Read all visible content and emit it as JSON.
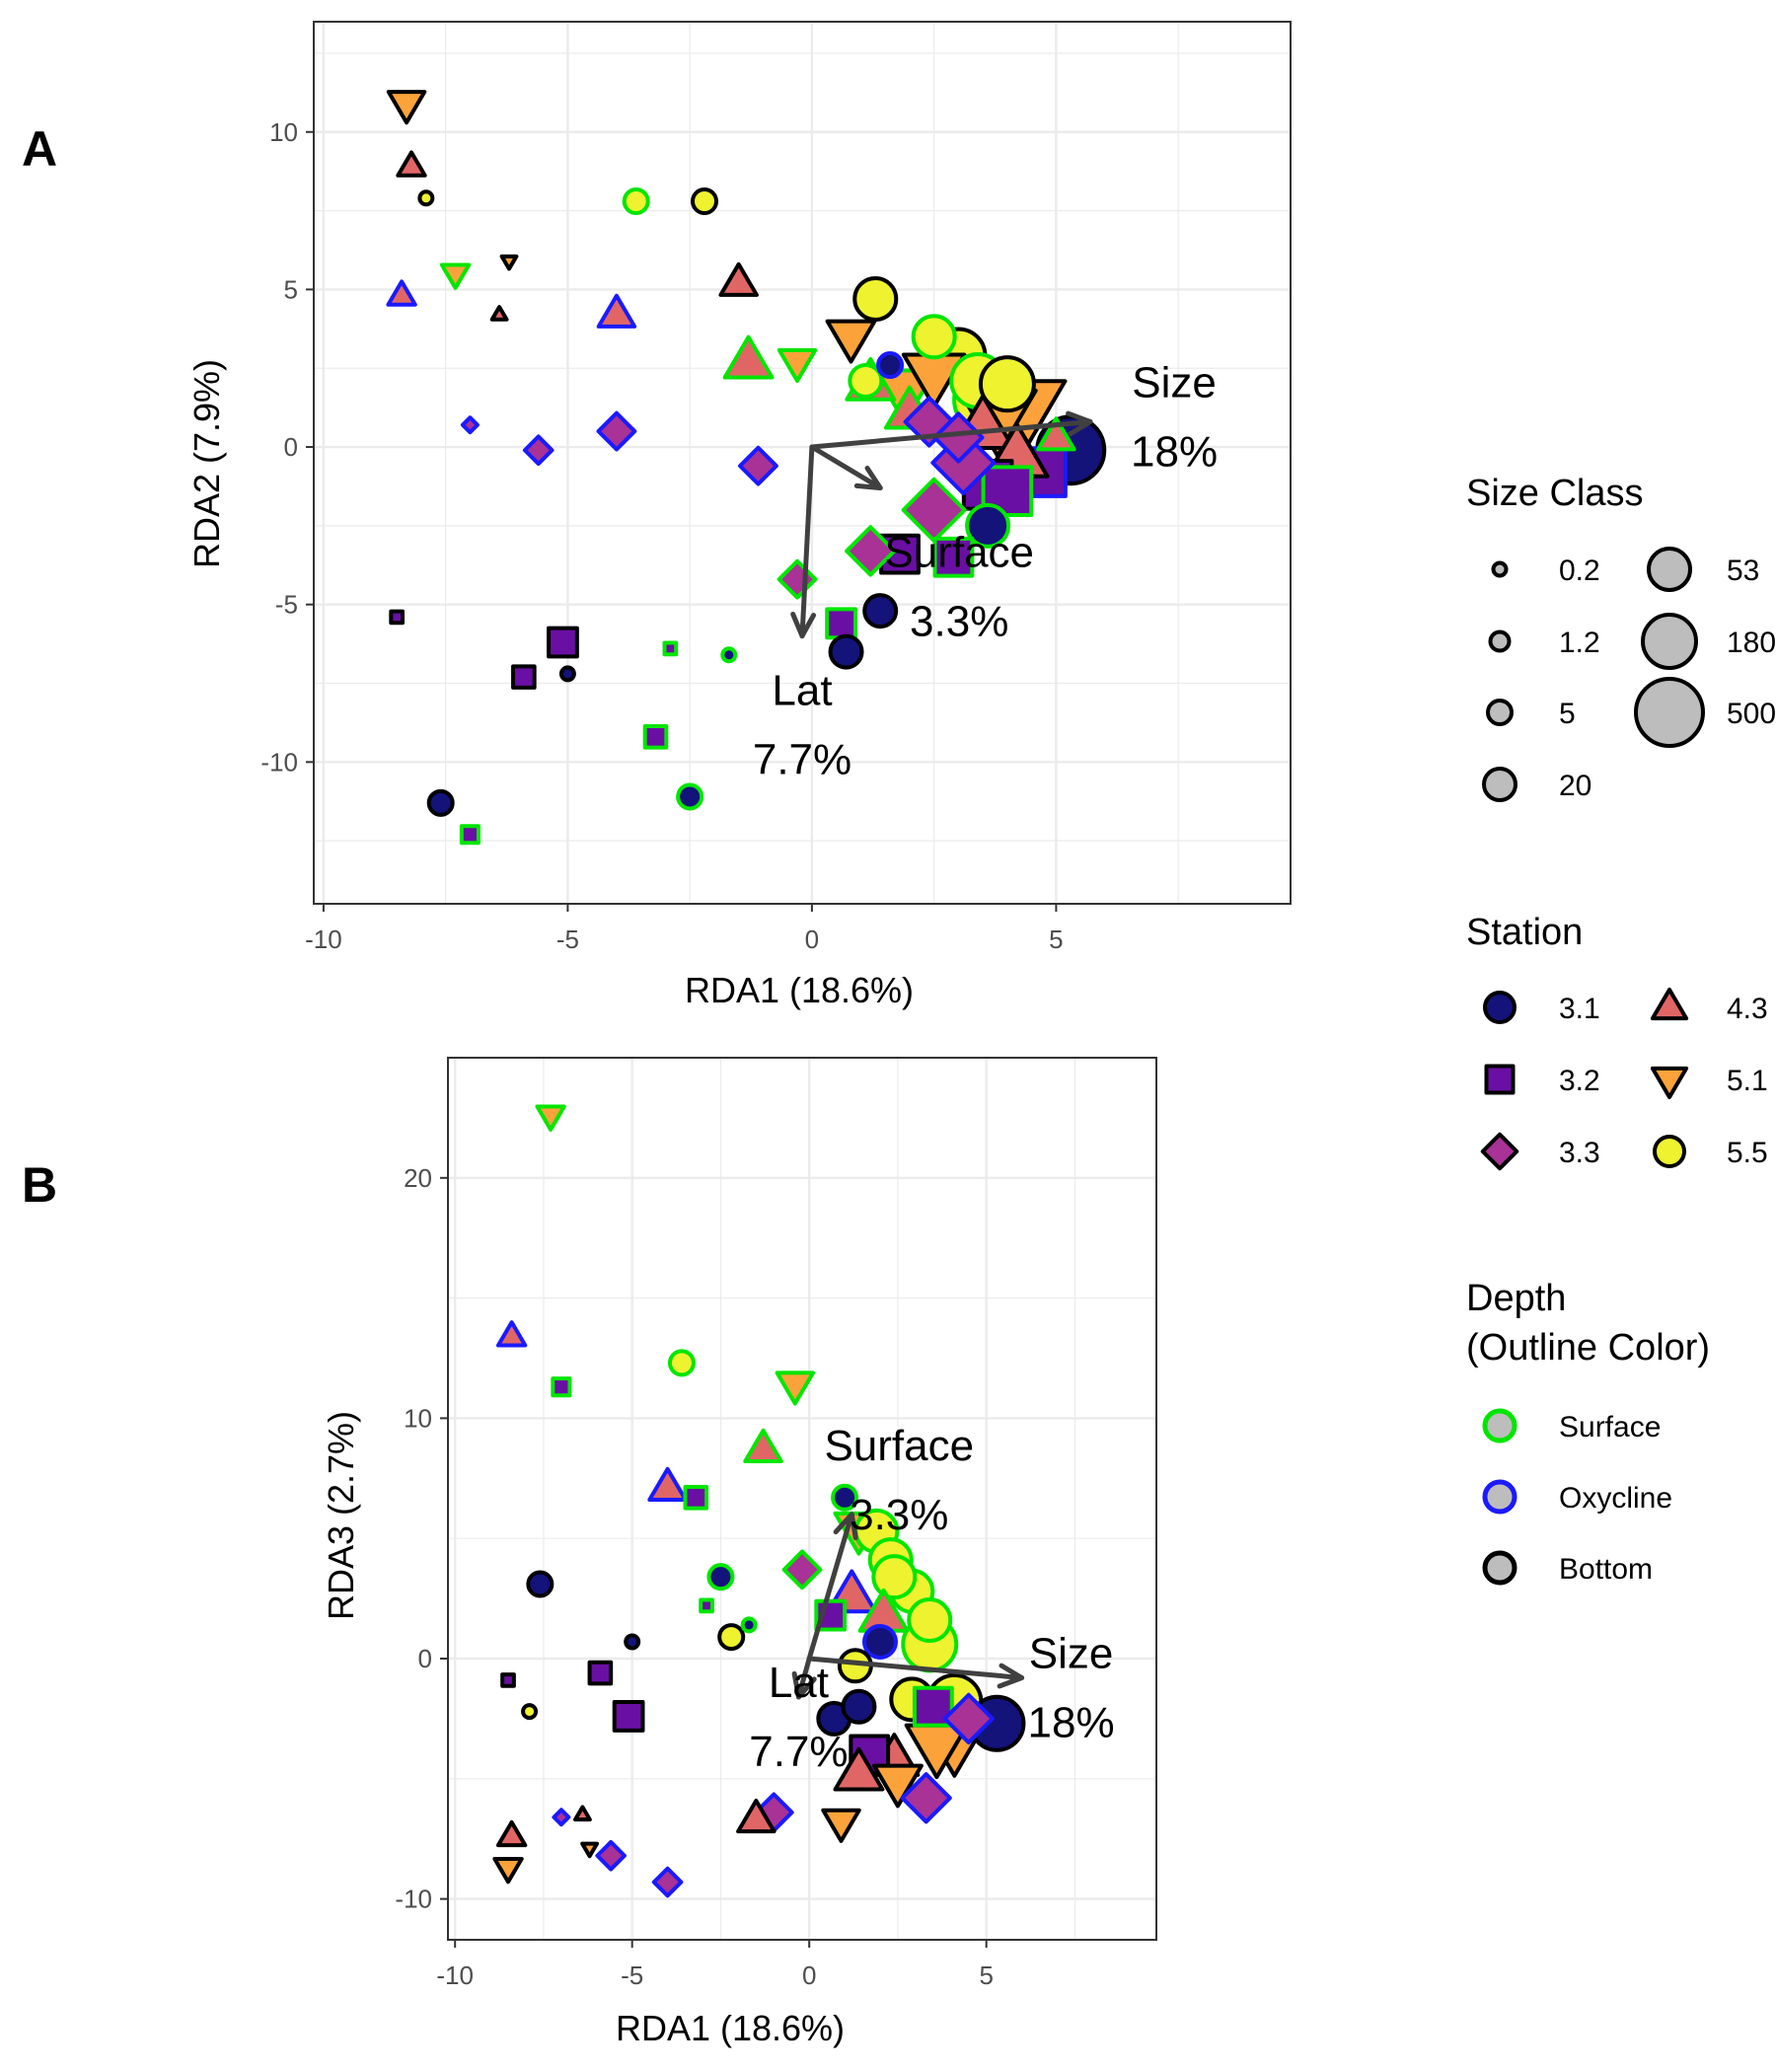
{
  "panels": [
    {
      "tag": "A",
      "xlabel": "RDA1 (18.6%)",
      "ylabel": "RDA2 (7.9%)",
      "xticks": [
        "-10",
        "-5",
        "0",
        "5"
      ],
      "yticks": [
        "-10",
        "-5",
        "0",
        "5",
        "10"
      ]
    },
    {
      "tag": "B",
      "xlabel": "RDA1 (18.6%)",
      "ylabel": "RDA3 (2.7%)",
      "xticks": [
        "-10",
        "-5",
        "0",
        "5"
      ],
      "yticks": [
        "-10",
        "0",
        "10",
        "20"
      ]
    }
  ],
  "legends": {
    "size_class": {
      "title": "Size Class",
      "items": [
        "0.2",
        "1.2",
        "5",
        "20",
        "53",
        "180",
        "500"
      ]
    },
    "station": {
      "title": "Station",
      "items": [
        "3.1",
        "3.2",
        "3.3",
        "4.3",
        "5.1",
        "5.5"
      ]
    },
    "depth": {
      "title": "Depth",
      "subtitle": "(Outline Color)",
      "items": [
        "Surface",
        "Oxycline",
        "Bottom"
      ]
    }
  },
  "colors": {
    "station": {
      "3.1": "#13137a",
      "3.2": "#6a0fa3",
      "3.3": "#a83296",
      "4.3": "#e06666",
      "5.1": "#fba33a",
      "5.5": "#eef22f"
    },
    "depth": {
      "Surface": "#00e600",
      "Oxycline": "#1a1aff",
      "Bottom": "#000000"
    },
    "arrow": "#404040",
    "grid": "#ebebeb"
  },
  "chart_data": [
    {
      "type": "scatter",
      "title": "",
      "xlabel": "RDA1 (18.6%)",
      "ylabel": "RDA2 (7.9%)",
      "xlim": [
        -10.2,
        9.8
      ],
      "ylim": [
        -14.5,
        13.5
      ],
      "grid": true,
      "legend_position": "right",
      "vectors": [
        {
          "label": "Size",
          "pct": "18%",
          "x": 5.7,
          "y": 0.8
        },
        {
          "label": "Surface",
          "pct": "3.3%",
          "x": 1.4,
          "y": -1.3
        },
        {
          "label": "Lat",
          "pct": "7.7%",
          "x": -0.2,
          "y": -6.0
        }
      ],
      "points": [
        {
          "x": -8.3,
          "y": 10.9,
          "station": "5.1",
          "depth": "Bottom",
          "size": "20"
        },
        {
          "x": -8.2,
          "y": 8.9,
          "station": "4.3",
          "depth": "Bottom",
          "size": "5"
        },
        {
          "x": -7.9,
          "y": 7.9,
          "station": "5.5",
          "depth": "Bottom",
          "size": "0.2"
        },
        {
          "x": -3.6,
          "y": 7.8,
          "station": "5.5",
          "depth": "Surface",
          "size": "5"
        },
        {
          "x": -2.2,
          "y": 7.8,
          "station": "5.5",
          "depth": "Bottom",
          "size": "5"
        },
        {
          "x": -8.4,
          "y": 4.8,
          "station": "4.3",
          "depth": "Oxycline",
          "size": "5"
        },
        {
          "x": -7.3,
          "y": 5.5,
          "station": "5.1",
          "depth": "Surface",
          "size": "5"
        },
        {
          "x": -6.2,
          "y": 5.9,
          "station": "5.1",
          "depth": "Bottom",
          "size": "0.2"
        },
        {
          "x": -6.4,
          "y": 4.2,
          "station": "4.3",
          "depth": "Bottom",
          "size": "0.2"
        },
        {
          "x": -4.0,
          "y": 4.2,
          "station": "4.3",
          "depth": "Oxycline",
          "size": "20"
        },
        {
          "x": -1.5,
          "y": 5.2,
          "station": "4.3",
          "depth": "Bottom",
          "size": "20"
        },
        {
          "x": -1.3,
          "y": 2.7,
          "station": "4.3",
          "depth": "Surface",
          "size": "53"
        },
        {
          "x": -0.3,
          "y": 2.7,
          "station": "5.1",
          "depth": "Surface",
          "size": "20"
        },
        {
          "x": 1.3,
          "y": 4.7,
          "station": "5.5",
          "depth": "Bottom",
          "size": "53"
        },
        {
          "x": 0.8,
          "y": 3.5,
          "station": "5.1",
          "depth": "Bottom",
          "size": "53"
        },
        {
          "x": 1.6,
          "y": 2.6,
          "station": "3.1",
          "depth": "Oxycline",
          "size": "5"
        },
        {
          "x": 1.1,
          "y": 2.1,
          "station": "5.5",
          "depth": "Surface",
          "size": "20"
        },
        {
          "x": 1.2,
          "y": 2.0,
          "station": "4.3",
          "depth": "Surface",
          "size": "53"
        },
        {
          "x": 1.9,
          "y": 1.8,
          "station": "5.1",
          "depth": "Surface",
          "size": "180"
        },
        {
          "x": 2.5,
          "y": 3.5,
          "station": "5.5",
          "depth": "Surface",
          "size": "53"
        },
        {
          "x": 3.0,
          "y": 2.9,
          "station": "5.5",
          "depth": "Bottom",
          "size": "180"
        },
        {
          "x": 2.5,
          "y": 2.3,
          "station": "5.1",
          "depth": "Bottom",
          "size": "180"
        },
        {
          "x": 3.4,
          "y": 2.1,
          "station": "5.5",
          "depth": "Surface",
          "size": "180"
        },
        {
          "x": 4.0,
          "y": 2.0,
          "station": "5.5",
          "depth": "Bottom",
          "size": "180"
        },
        {
          "x": 3.6,
          "y": 1.5,
          "station": "5.5",
          "depth": "Surface",
          "size": "500"
        },
        {
          "x": 2.0,
          "y": 1.1,
          "station": "4.3",
          "depth": "Surface",
          "size": "53"
        },
        {
          "x": 2.4,
          "y": 0.8,
          "station": "3.3",
          "depth": "Oxycline",
          "size": "53"
        },
        {
          "x": 3.0,
          "y": 0.3,
          "station": "3.3",
          "depth": "Oxycline",
          "size": "53"
        },
        {
          "x": 3.5,
          "y": 0.6,
          "station": "4.3",
          "depth": "Bottom",
          "size": "180"
        },
        {
          "x": 4.4,
          "y": 1.3,
          "station": "5.1",
          "depth": "Bottom",
          "size": "500"
        },
        {
          "x": 3.8,
          "y": 1.0,
          "station": "5.1",
          "depth": "Bottom",
          "size": "500"
        },
        {
          "x": 5.3,
          "y": -0.1,
          "station": "3.1",
          "depth": "Bottom",
          "size": "500"
        },
        {
          "x": 4.7,
          "y": -0.8,
          "station": "3.2",
          "depth": "Oxycline",
          "size": "180"
        },
        {
          "x": 4.2,
          "y": -0.3,
          "station": "4.3",
          "depth": "Bottom",
          "size": "180"
        },
        {
          "x": 5.0,
          "y": 0.3,
          "station": "4.3",
          "depth": "Surface",
          "size": "20"
        },
        {
          "x": 3.6,
          "y": -1.2,
          "station": "3.2",
          "depth": "Bottom",
          "size": "180"
        },
        {
          "x": 4.0,
          "y": -1.4,
          "station": "3.2",
          "depth": "Surface",
          "size": "180"
        },
        {
          "x": 3.1,
          "y": -0.5,
          "station": "3.3",
          "depth": "Oxycline",
          "size": "180"
        },
        {
          "x": 3.6,
          "y": -2.5,
          "station": "3.1",
          "depth": "Surface",
          "size": "53"
        },
        {
          "x": 2.5,
          "y": -2.0,
          "station": "3.3",
          "depth": "Surface",
          "size": "180"
        },
        {
          "x": 2.9,
          "y": -3.5,
          "station": "3.2",
          "depth": "Surface",
          "size": "53"
        },
        {
          "x": 1.8,
          "y": -3.4,
          "station": "3.2",
          "depth": "Bottom",
          "size": "53"
        },
        {
          "x": 1.2,
          "y": -3.3,
          "station": "3.3",
          "depth": "Surface",
          "size": "53"
        },
        {
          "x": -0.3,
          "y": -4.2,
          "station": "3.3",
          "depth": "Surface",
          "size": "20"
        },
        {
          "x": 1.4,
          "y": -5.2,
          "station": "3.1",
          "depth": "Bottom",
          "size": "20"
        },
        {
          "x": 0.6,
          "y": -5.6,
          "station": "3.2",
          "depth": "Surface",
          "size": "20"
        },
        {
          "x": 0.7,
          "y": -6.5,
          "station": "3.1",
          "depth": "Bottom",
          "size": "20"
        },
        {
          "x": -7.0,
          "y": 0.7,
          "station": "3.3",
          "depth": "Oxycline",
          "size": "0.2"
        },
        {
          "x": -5.6,
          "y": -0.1,
          "station": "3.3",
          "depth": "Oxycline",
          "size": "5"
        },
        {
          "x": -4.0,
          "y": 0.5,
          "station": "3.3",
          "depth": "Oxycline",
          "size": "20"
        },
        {
          "x": -1.1,
          "y": -0.6,
          "station": "3.3",
          "depth": "Oxycline",
          "size": "20"
        },
        {
          "x": -8.5,
          "y": -5.4,
          "station": "3.2",
          "depth": "Bottom",
          "size": "0.2"
        },
        {
          "x": -5.1,
          "y": -6.2,
          "station": "3.2",
          "depth": "Bottom",
          "size": "20"
        },
        {
          "x": -5.9,
          "y": -7.3,
          "station": "3.2",
          "depth": "Bottom",
          "size": "5"
        },
        {
          "x": -5.0,
          "y": -7.2,
          "station": "3.1",
          "depth": "Bottom",
          "size": "0.2"
        },
        {
          "x": -2.9,
          "y": -6.4,
          "station": "3.2",
          "depth": "Surface",
          "size": "0.2"
        },
        {
          "x": -1.7,
          "y": -6.6,
          "station": "3.1",
          "depth": "Surface",
          "size": "0.2"
        },
        {
          "x": -3.2,
          "y": -9.2,
          "station": "3.2",
          "depth": "Surface",
          "size": "5"
        },
        {
          "x": -7.6,
          "y": -11.3,
          "station": "3.1",
          "depth": "Bottom",
          "size": "5"
        },
        {
          "x": -2.5,
          "y": -11.1,
          "station": "3.1",
          "depth": "Surface",
          "size": "5"
        },
        {
          "x": -7.0,
          "y": -12.3,
          "station": "3.2",
          "depth": "Surface",
          "size": "1.2"
        }
      ]
    },
    {
      "type": "scatter",
      "title": "",
      "xlabel": "RDA1 (18.6%)",
      "ylabel": "RDA3 (2.7%)",
      "xlim": [
        -10.2,
        9.8
      ],
      "ylim": [
        -11.7,
        25.0
      ],
      "grid": true,
      "legend_position": "right",
      "vectors": [
        {
          "label": "Size",
          "pct": "18%",
          "x": 6.0,
          "y": -0.8
        },
        {
          "label": "Surface",
          "pct": "3.3%",
          "x": 1.2,
          "y": 6.0
        },
        {
          "label": "Lat",
          "pct": "7.7%",
          "x": -0.3,
          "y": -1.6
        }
      ],
      "points": [
        {
          "x": -7.3,
          "y": 22.6,
          "station": "5.1",
          "depth": "Surface",
          "size": "5"
        },
        {
          "x": -8.4,
          "y": 13.4,
          "station": "4.3",
          "depth": "Oxycline",
          "size": "5"
        },
        {
          "x": -7.0,
          "y": 11.3,
          "station": "3.2",
          "depth": "Surface",
          "size": "1.2"
        },
        {
          "x": -3.6,
          "y": 12.3,
          "station": "5.5",
          "depth": "Surface",
          "size": "5"
        },
        {
          "x": -0.4,
          "y": 11.4,
          "station": "5.1",
          "depth": "Surface",
          "size": "20"
        },
        {
          "x": -1.3,
          "y": 8.7,
          "station": "4.3",
          "depth": "Surface",
          "size": "20"
        },
        {
          "x": -4.0,
          "y": 7.1,
          "station": "4.3",
          "depth": "Oxycline",
          "size": "20"
        },
        {
          "x": -3.2,
          "y": 6.7,
          "station": "3.2",
          "depth": "Surface",
          "size": "5"
        },
        {
          "x": 1.0,
          "y": 6.7,
          "station": "3.1",
          "depth": "Surface",
          "size": "5"
        },
        {
          "x": -0.2,
          "y": 3.7,
          "station": "3.3",
          "depth": "Surface",
          "size": "20"
        },
        {
          "x": -2.5,
          "y": 3.4,
          "station": "3.1",
          "depth": "Surface",
          "size": "5"
        },
        {
          "x": -2.9,
          "y": 2.2,
          "station": "3.2",
          "depth": "Surface",
          "size": "0.2"
        },
        {
          "x": -1.7,
          "y": 1.4,
          "station": "3.1",
          "depth": "Surface",
          "size": "0.2"
        },
        {
          "x": -2.2,
          "y": 0.9,
          "station": "5.5",
          "depth": "Bottom",
          "size": "5"
        },
        {
          "x": -7.6,
          "y": 3.1,
          "station": "3.1",
          "depth": "Bottom",
          "size": "5"
        },
        {
          "x": -5.0,
          "y": 0.7,
          "station": "3.1",
          "depth": "Bottom",
          "size": "0.2"
        },
        {
          "x": -5.9,
          "y": -0.6,
          "station": "3.2",
          "depth": "Bottom",
          "size": "5"
        },
        {
          "x": -8.5,
          "y": -0.9,
          "station": "3.2",
          "depth": "Bottom",
          "size": "0.2"
        },
        {
          "x": -7.9,
          "y": -2.2,
          "station": "5.5",
          "depth": "Bottom",
          "size": "0.2"
        },
        {
          "x": -5.1,
          "y": -2.4,
          "station": "3.2",
          "depth": "Bottom",
          "size": "20"
        },
        {
          "x": 0.6,
          "y": 1.8,
          "station": "3.2",
          "depth": "Surface",
          "size": "20"
        },
        {
          "x": 1.2,
          "y": 2.6,
          "station": "4.3",
          "depth": "Oxycline",
          "size": "53"
        },
        {
          "x": 1.4,
          "y": 5.4,
          "station": "5.1",
          "depth": "Surface",
          "size": "53"
        },
        {
          "x": 1.9,
          "y": 5.3,
          "station": "5.5",
          "depth": "Surface",
          "size": "53"
        },
        {
          "x": 2.3,
          "y": 4.1,
          "station": "5.5",
          "depth": "Surface",
          "size": "53"
        },
        {
          "x": 2.9,
          "y": 2.8,
          "station": "5.5",
          "depth": "Surface",
          "size": "53"
        },
        {
          "x": 2.4,
          "y": 3.4,
          "station": "5.5",
          "depth": "Surface",
          "size": "53"
        },
        {
          "x": 2.1,
          "y": 1.8,
          "station": "4.3",
          "depth": "Surface",
          "size": "53"
        },
        {
          "x": 3.4,
          "y": 1.6,
          "station": "5.5",
          "depth": "Surface",
          "size": "53"
        },
        {
          "x": 2.0,
          "y": 0.7,
          "station": "3.1",
          "depth": "Oxycline",
          "size": "20"
        },
        {
          "x": 3.4,
          "y": 0.6,
          "station": "5.5",
          "depth": "Surface",
          "size": "180"
        },
        {
          "x": 1.3,
          "y": -0.3,
          "station": "5.5",
          "depth": "Bottom",
          "size": "20"
        },
        {
          "x": 0.7,
          "y": -2.5,
          "station": "3.1",
          "depth": "Bottom",
          "size": "20"
        },
        {
          "x": 1.4,
          "y": -2.0,
          "station": "3.1",
          "depth": "Bottom",
          "size": "20"
        },
        {
          "x": 2.9,
          "y": -1.7,
          "station": "5.5",
          "depth": "Bottom",
          "size": "53"
        },
        {
          "x": 3.5,
          "y": -2.0,
          "station": "3.2",
          "depth": "Surface",
          "size": "53"
        },
        {
          "x": 4.1,
          "y": -1.8,
          "station": "5.5",
          "depth": "Bottom",
          "size": "180"
        },
        {
          "x": 5.3,
          "y": -2.7,
          "station": "3.1",
          "depth": "Bottom",
          "size": "180"
        },
        {
          "x": 4.5,
          "y": -2.5,
          "station": "3.3",
          "depth": "Oxycline",
          "size": "53"
        },
        {
          "x": 4.1,
          "y": -3.2,
          "station": "5.1",
          "depth": "Bottom",
          "size": "500"
        },
        {
          "x": 3.6,
          "y": -3.6,
          "station": "5.1",
          "depth": "Bottom",
          "size": "180"
        },
        {
          "x": 2.4,
          "y": -4.2,
          "station": "4.3",
          "depth": "Bottom",
          "size": "53"
        },
        {
          "x": 1.7,
          "y": -4.0,
          "station": "3.2",
          "depth": "Bottom",
          "size": "53"
        },
        {
          "x": 1.4,
          "y": -4.8,
          "station": "4.3",
          "depth": "Bottom",
          "size": "53"
        },
        {
          "x": 2.5,
          "y": -5.1,
          "station": "5.1",
          "depth": "Bottom",
          "size": "53"
        },
        {
          "x": 3.3,
          "y": -5.8,
          "station": "3.3",
          "depth": "Oxycline",
          "size": "53"
        },
        {
          "x": 0.9,
          "y": -6.8,
          "station": "5.1",
          "depth": "Bottom",
          "size": "20"
        },
        {
          "x": -1.0,
          "y": -6.4,
          "station": "3.3",
          "depth": "Oxycline",
          "size": "20"
        },
        {
          "x": -1.5,
          "y": -6.7,
          "station": "4.3",
          "depth": "Bottom",
          "size": "20"
        },
        {
          "x": -8.4,
          "y": -7.4,
          "station": "4.3",
          "depth": "Bottom",
          "size": "5"
        },
        {
          "x": -8.5,
          "y": -8.7,
          "station": "5.1",
          "depth": "Bottom",
          "size": "5"
        },
        {
          "x": -7.0,
          "y": -6.6,
          "station": "3.3",
          "depth": "Oxycline",
          "size": "0.2"
        },
        {
          "x": -6.4,
          "y": -6.5,
          "station": "4.3",
          "depth": "Bottom",
          "size": "0.2"
        },
        {
          "x": -6.2,
          "y": -7.9,
          "station": "5.1",
          "depth": "Bottom",
          "size": "0.2"
        },
        {
          "x": -5.6,
          "y": -8.2,
          "station": "3.3",
          "depth": "Oxycline",
          "size": "5"
        },
        {
          "x": -4.0,
          "y": -9.3,
          "station": "3.3",
          "depth": "Oxycline",
          "size": "5"
        }
      ]
    }
  ]
}
